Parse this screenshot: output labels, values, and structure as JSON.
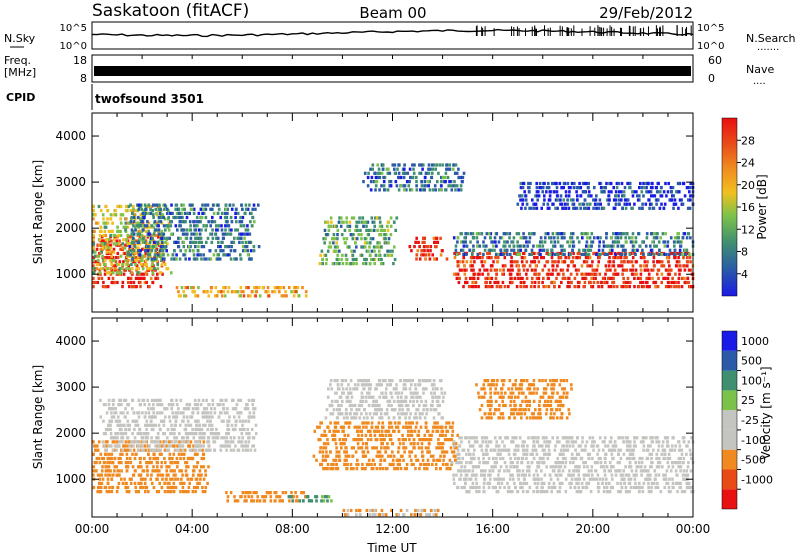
{
  "header": {
    "station": "Saskatoon (fitACF)",
    "beam": "Beam 00",
    "date": "29/Feb/2012"
  },
  "nsky_panel": {
    "left_label": "N.Sky",
    "right_label": "N.Search",
    "right_dots": ".......",
    "ticks_left": [
      "10^5",
      "10^0"
    ],
    "ticks_right": [
      "10^5",
      "10^0"
    ]
  },
  "freq_panel": {
    "left_label_1": "Freq.",
    "left_label_2": "[MHz]",
    "right_label": "Nave",
    "right_dots": "....",
    "ticks_left": [
      "18",
      "8"
    ],
    "ticks_right": [
      "60",
      "0"
    ]
  },
  "cpid_panel": {
    "label": "CPID",
    "program": "twofsound 3501"
  },
  "colors": {
    "frame": "#000000",
    "velocity_gray": "#c4c4c0",
    "power_scale": [
      "#1a1ae6",
      "#2a5aa8",
      "#3f8f70",
      "#7cc24a",
      "#f0c020",
      "#f08a20",
      "#e84a18",
      "#e81010"
    ],
    "velocity_scale": [
      "#e81010",
      "#e84a18",
      "#f08a20",
      "#c4c4c0",
      "#c4c4c0",
      "#7cc24a",
      "#3f8f70",
      "#2a5aa8",
      "#1a1ae6"
    ]
  },
  "chart_data": [
    {
      "type": "heatmap",
      "panel": "power",
      "ylabel": "Slant Range [km]",
      "yticks": [
        "1000",
        "2000",
        "3000",
        "4000"
      ],
      "ylim": [
        180,
        4500
      ],
      "colorbar_label": "Power [dB]",
      "colorbar_ticks": [
        "4",
        "8",
        "12",
        "16",
        "20",
        "24",
        "28"
      ],
      "grid": false,
      "regions": [
        {
          "x0": 0.0,
          "x1": 2.7,
          "y0": 700,
          "y1": 1900,
          "value": 28
        },
        {
          "x0": 0.0,
          "x1": 3.0,
          "y0": 1000,
          "y1": 2500,
          "value": 16
        },
        {
          "x0": 1.5,
          "x1": 6.5,
          "y0": 1300,
          "y1": 2600,
          "value": 8
        },
        {
          "x0": 3.5,
          "x1": 8.5,
          "y0": 500,
          "y1": 800,
          "value": 20
        },
        {
          "x0": 9.2,
          "x1": 12.0,
          "y0": 1200,
          "y1": 2300,
          "value": 12
        },
        {
          "x0": 12.8,
          "x1": 14.0,
          "y0": 1300,
          "y1": 1800,
          "value": 28
        },
        {
          "x0": 11.0,
          "x1": 14.8,
          "y0": 2800,
          "y1": 3400,
          "value": 8
        },
        {
          "x0": 14.5,
          "x1": 24.0,
          "y0": 700,
          "y1": 1500,
          "value": 28
        },
        {
          "x0": 14.5,
          "x1": 24.0,
          "y0": 1400,
          "y1": 1900,
          "value": 8
        },
        {
          "x0": 17.0,
          "x1": 24.0,
          "y0": 2400,
          "y1": 3000,
          "value": 4
        }
      ]
    },
    {
      "type": "heatmap",
      "panel": "velocity",
      "ylabel": "Slant Range [km]",
      "yticks": [
        "1000",
        "2000",
        "3000",
        "4000"
      ],
      "ylim": [
        180,
        4500
      ],
      "xlabel": "Time UT",
      "xticks": [
        "00:00",
        "04:00",
        "08:00",
        "12:00",
        "16:00",
        "20:00",
        "00:00"
      ],
      "xlim": [
        0,
        24
      ],
      "colorbar_label": "Velocity [m s⁻¹]",
      "colorbar_ticks": [
        "1000",
        "500",
        "100",
        "25",
        "-25",
        "-100",
        "-500",
        "-1000"
      ],
      "grid": false,
      "regions": [
        {
          "x0": 0.0,
          "x1": 4.5,
          "y0": 700,
          "y1": 1900,
          "value": -300
        },
        {
          "x0": 0.5,
          "x1": 6.5,
          "y0": 1600,
          "y1": 2800,
          "value": 0
        },
        {
          "x0": 5.5,
          "x1": 8.5,
          "y0": 500,
          "y1": 800,
          "value": -300
        },
        {
          "x0": 8.0,
          "x1": 9.5,
          "y0": 500,
          "y1": 700,
          "value": 120
        },
        {
          "x0": 9.0,
          "x1": 14.5,
          "y0": 1200,
          "y1": 2300,
          "value": -200
        },
        {
          "x0": 9.5,
          "x1": 14.0,
          "y0": 2300,
          "y1": 3200,
          "value": 0
        },
        {
          "x0": 14.5,
          "x1": 24.0,
          "y0": 700,
          "y1": 2000,
          "value": 0
        },
        {
          "x0": 15.5,
          "x1": 19.0,
          "y0": 2300,
          "y1": 3200,
          "value": -300
        },
        {
          "x0": 10.0,
          "x1": 14.0,
          "y0": 200,
          "y1": 400,
          "value": -100
        }
      ]
    }
  ]
}
